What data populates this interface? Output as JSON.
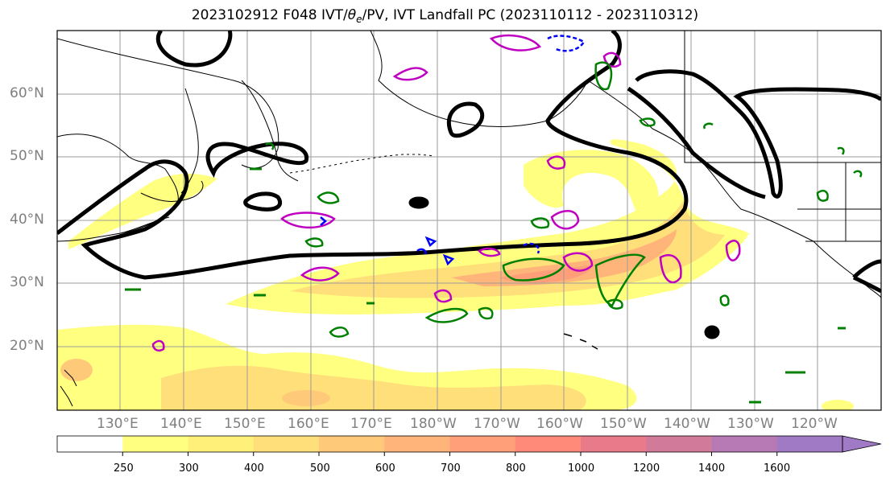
{
  "title": {
    "prefix": "2023102912 F048 IVT/",
    "theta": "θ",
    "theta_sub": "e",
    "suffix": "/PV, IVT Landfall PC (2023110112 - 2023110312)"
  },
  "lat_ticks": [
    "60°N",
    "50°N",
    "40°N",
    "30°N",
    "20°N"
  ],
  "lon_ticks": [
    "130°E",
    "140°E",
    "150°E",
    "160°E",
    "170°E",
    "180°W",
    "170°W",
    "160°W",
    "150°W",
    "140°W",
    "130°W",
    "120°W"
  ],
  "colorbar": {
    "labels": [
      "250",
      "300",
      "400",
      "500",
      "600",
      "700",
      "800",
      "1000",
      "1200",
      "1400",
      "1600"
    ],
    "colors": [
      "#ffffff",
      "#ffff80",
      "#fff07a",
      "#ffdf7a",
      "#ffc97a",
      "#ffb47a",
      "#ff9f7a",
      "#ff8a7a",
      "#e97a8a",
      "#d27a9a",
      "#b87ab5",
      "#a07ac5"
    ]
  },
  "colors": {
    "ivt_low": "#ffff80",
    "ivt_mid": "#ffd27a",
    "ivt_high": "#ff9f7a",
    "pv_contour": "#000000",
    "theta_e_contour": "#c000c0",
    "green_contour": "#008000",
    "blue_contour": "#0000ff"
  }
}
